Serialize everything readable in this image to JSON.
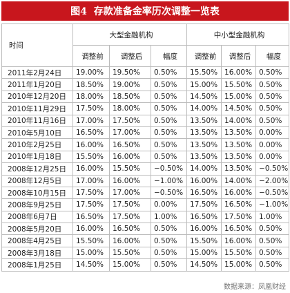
{
  "header": {
    "figure": "图4",
    "title": "存款准备金率历次调整一览表"
  },
  "table": {
    "time_header": "时间",
    "groups": [
      "大型金融机构",
      "中小型金融机构"
    ],
    "subheaders": [
      "调整前",
      "调整后",
      "幅度",
      "调整前",
      "调整后",
      "幅度"
    ],
    "rows": [
      [
        "2011年2月24日",
        "19.00%",
        "19.50%",
        "0.50%",
        "15.50%",
        "16.00%",
        "0.50%"
      ],
      [
        "2011年1月20日",
        "18.50%",
        "19.00%",
        "0.50%",
        "15.00%",
        "15.50%",
        "0.50%"
      ],
      [
        "2010年12月20日",
        "18.00%",
        "18.50%",
        "0.50%",
        "14.50%",
        "15.00%",
        "0.50%"
      ],
      [
        "2010年11月29日",
        "17.50%",
        "18.00%",
        "0.50%",
        "14.00%",
        "14.50%",
        "0.50%"
      ],
      [
        "2010年11月16日",
        "17.00%",
        "17.50%",
        "0.50%",
        "13.50%",
        "14.00%",
        "0.50%"
      ],
      [
        "2010年5月10日",
        "16.50%",
        "17.00%",
        "0.50%",
        "13.50%",
        "13.50%",
        "0.00%"
      ],
      [
        "2010年2月25日",
        "16.00%",
        "16.50%",
        "0.50%",
        "13.50%",
        "13.50%",
        "0.00%"
      ],
      [
        "2010年1月18日",
        "15.50%",
        "16.00%",
        "0.50%",
        "13.50%",
        "13.50%",
        "0.00%"
      ],
      [
        "2008年12月25日",
        "16.00%",
        "15.50%",
        "−0.50%",
        "14.00%",
        "13.50%",
        "−0.50%"
      ],
      [
        "2008年12月5日",
        "17.00%",
        "16.00%",
        "−1.00%",
        "16.00%",
        "14.00%",
        "−2.00%"
      ],
      [
        "2008年10月15日",
        "17.50%",
        "17.00%",
        "−0.50%",
        "16.50%",
        "16.00%",
        "−0.50%"
      ],
      [
        "2008年9月25日",
        "17.50%",
        "17.50%",
        "0.00%",
        "17.50%",
        "16.50%",
        "−1.00%"
      ],
      [
        "2008年6月7日",
        "16.50%",
        "17.50%",
        "1.00%",
        "16.50%",
        "17.50%",
        "1.00%"
      ],
      [
        "2008年5月20日",
        "16.00%",
        "16.50%",
        "0.50%",
        "16.00%",
        "16.50%",
        "0.50%"
      ],
      [
        "2008年4月25日",
        "15.50%",
        "16.00%",
        "0.50%",
        "15.50%",
        "16.00%",
        "0.50%"
      ],
      [
        "2008年3月18日",
        "15.00%",
        "15.50%",
        "0.50%",
        "15.00%",
        "15.50%",
        "0.50%"
      ],
      [
        "2008年1月25日",
        "14.50%",
        "15.00%",
        "0.50%",
        "14.50%",
        "15.00%",
        "0.50%"
      ]
    ]
  },
  "source": "数据来源：凤凰财经"
}
